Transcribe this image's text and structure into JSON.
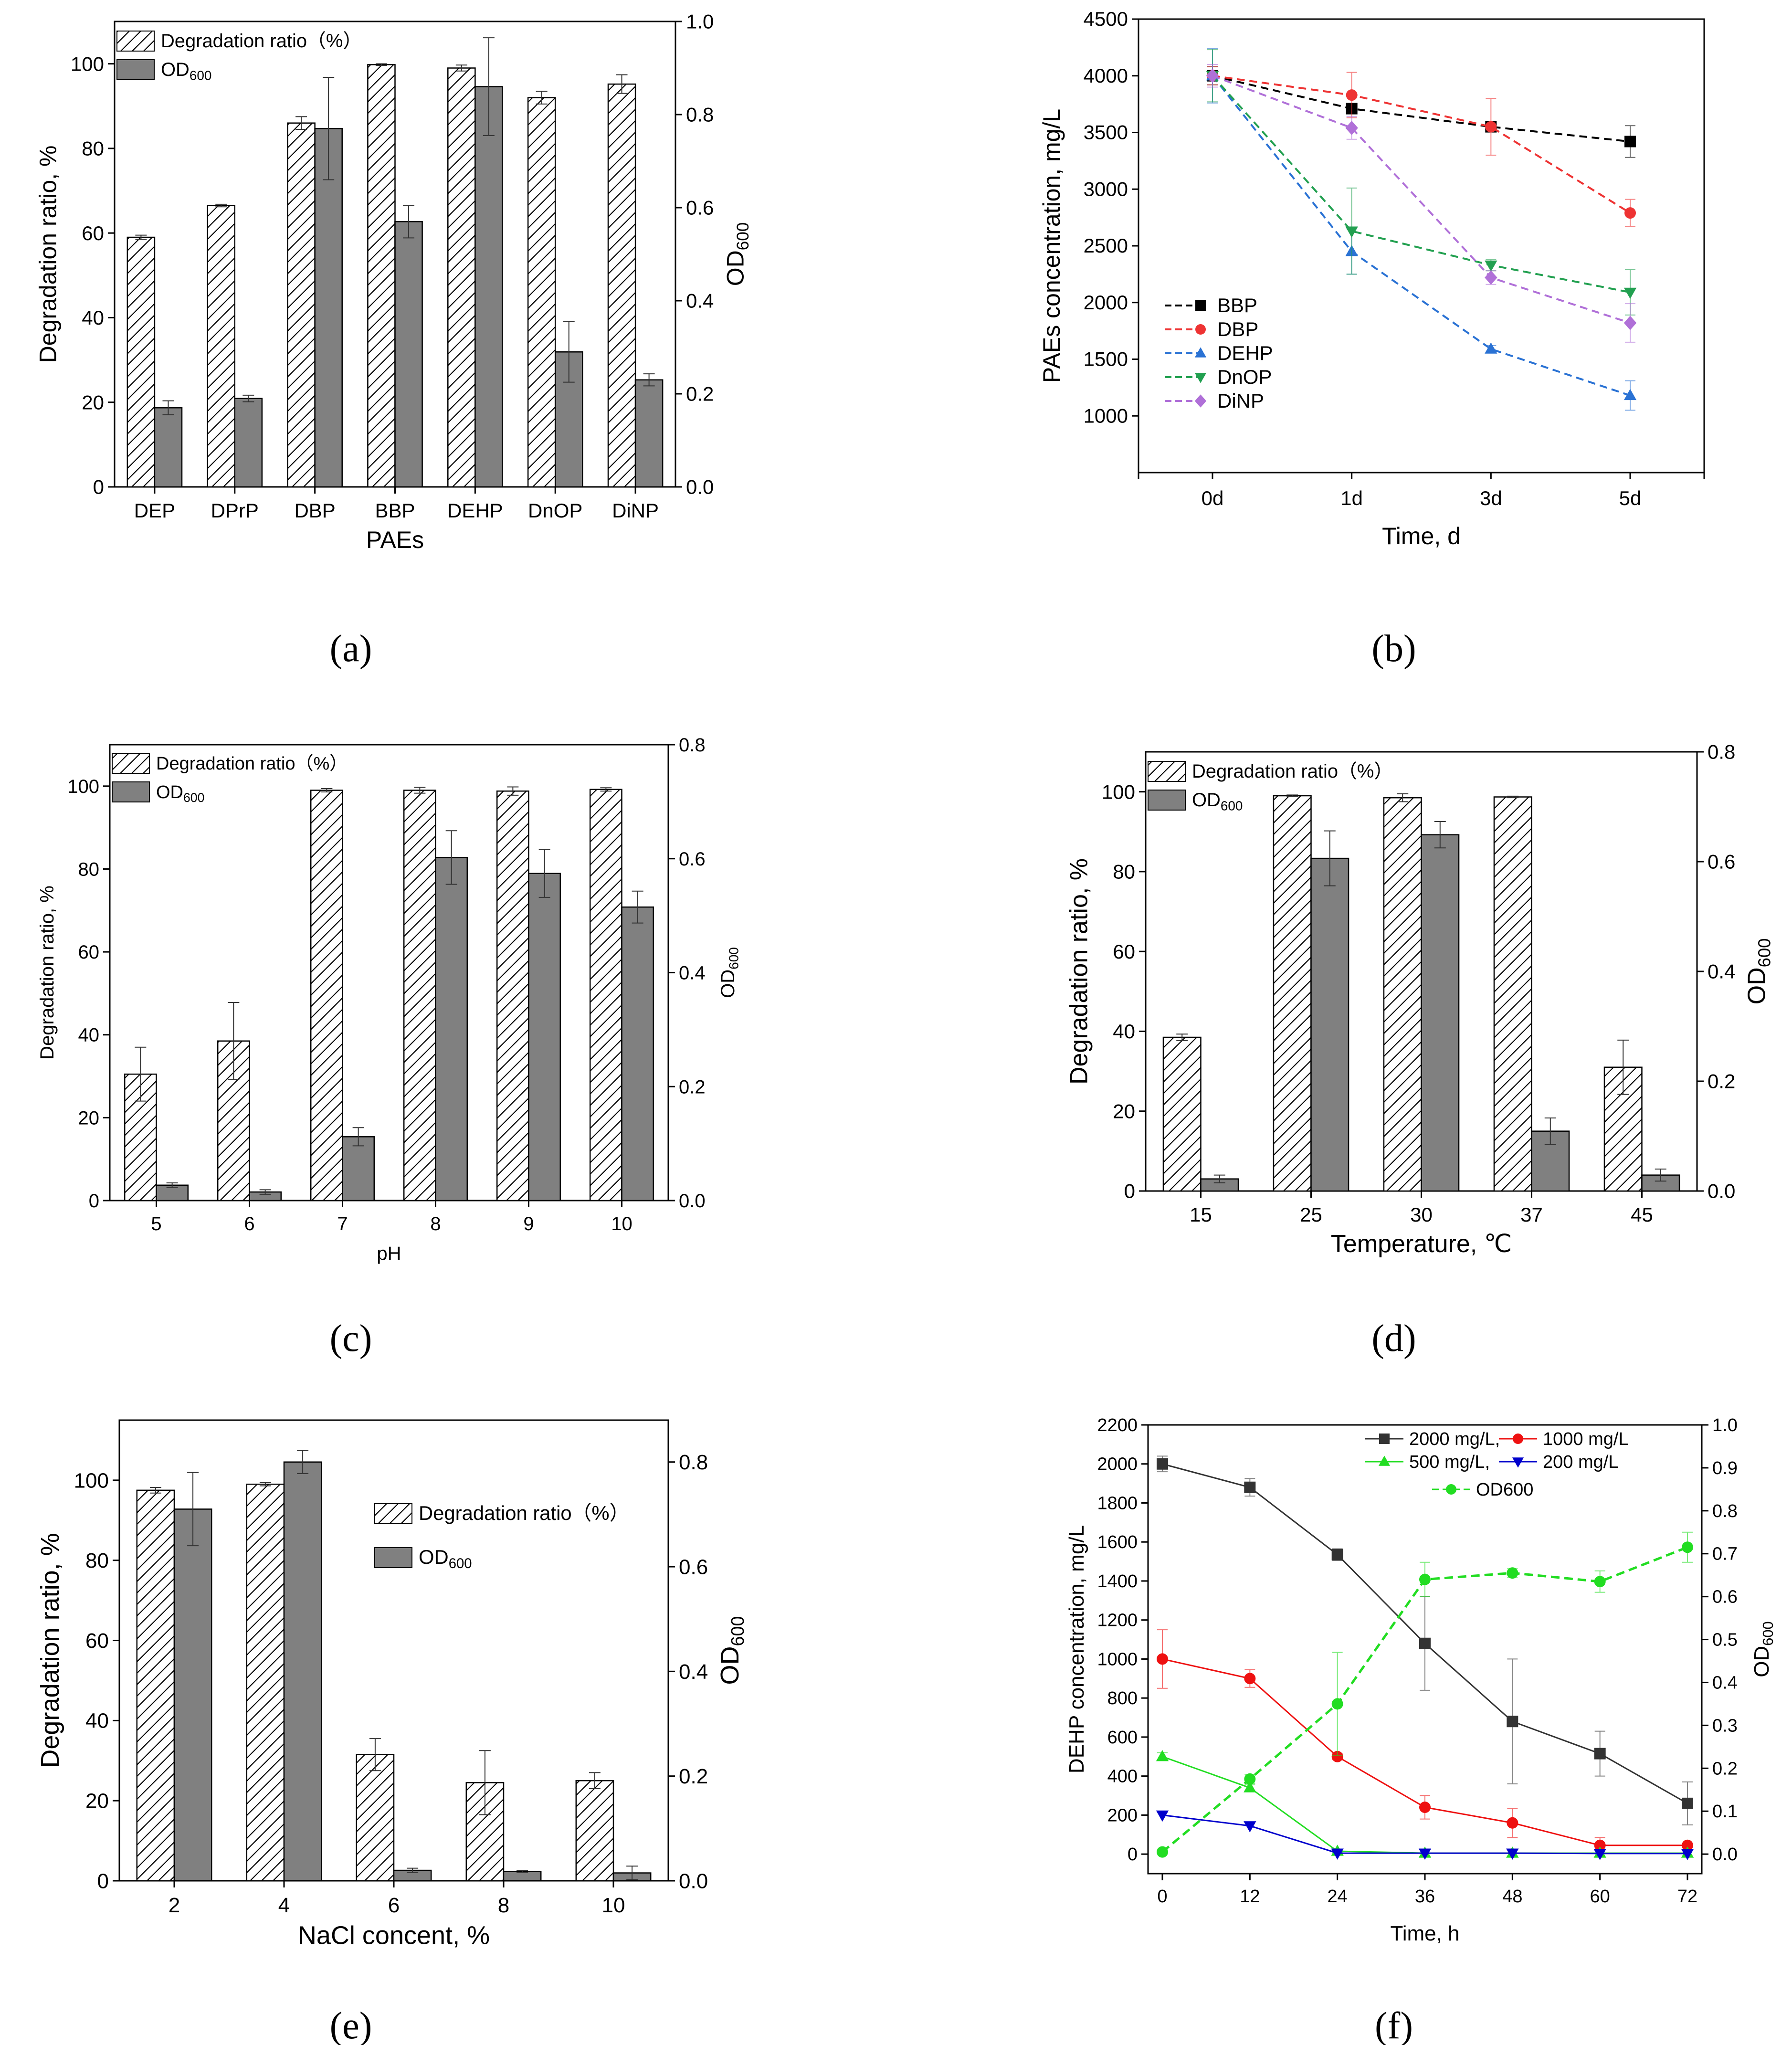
{
  "panel_labels": [
    "(a)",
    "(b)",
    "(c)",
    "(d)",
    "(e)",
    "(f)"
  ],
  "chart_data": [
    {
      "id": "a",
      "type": "bar",
      "categories": [
        "DEP",
        "DPrP",
        "DBP",
        "BBP",
        "DEHP",
        "DnOP",
        "DiNP"
      ],
      "series": [
        {
          "name": "Degradation ratio（%）",
          "axis": "left",
          "pattern": "hatch",
          "values": [
            59,
            66.5,
            86,
            99.8,
            99,
            92,
            95.2
          ],
          "errors": [
            0.5,
            0.3,
            1.5,
            0.2,
            0.7,
            1.5,
            2.2
          ]
        },
        {
          "name": "OD",
          "name_sub": "600",
          "axis": "right",
          "pattern": "solid",
          "values": [
            0.17,
            0.19,
            0.77,
            0.57,
            0.86,
            0.29,
            0.23
          ],
          "errors": [
            0.015,
            0.007,
            0.11,
            0.035,
            0.105,
            0.065,
            0.013
          ]
        }
      ],
      "xlabel": "PAEs",
      "ylabel": "Degradation ratio, %",
      "y2label": "OD",
      "y2label_sub": "600",
      "ylim": [
        0,
        110
      ],
      "y2lim": [
        0,
        1.0
      ],
      "yticks": [
        "0",
        "20",
        "40",
        "60",
        "80",
        "100"
      ],
      "y2ticks": [
        "0.0",
        "0.2",
        "0.4",
        "0.6",
        "0.8",
        "1.0"
      ],
      "legend": "top-left"
    },
    {
      "id": "b",
      "type": "line",
      "categories": [
        "0d",
        "1d",
        "3d",
        "5d"
      ],
      "series": [
        {
          "name": "BBP",
          "color": "#000000",
          "marker": "square",
          "values": [
            4000,
            3710,
            3550,
            3420
          ],
          "errors": [
            80,
            30,
            30,
            140
          ]
        },
        {
          "name": "DBP",
          "color": "#ee3333",
          "marker": "circle",
          "values": [
            4000,
            3830,
            3550,
            2790
          ],
          "errors": [
            80,
            200,
            250,
            120
          ]
        },
        {
          "name": "DEHP",
          "color": "#2a72d4",
          "marker": "triangle-up",
          "values": [
            4000,
            2450,
            1590,
            1180
          ],
          "errors": [
            240,
            200,
            30,
            130
          ]
        },
        {
          "name": "DnOP",
          "color": "#22a050",
          "marker": "triangle-down",
          "values": [
            4000,
            2630,
            2330,
            2090
          ],
          "errors": [
            230,
            380,
            50,
            200
          ]
        },
        {
          "name": "DiNP",
          "color": "#b070d8",
          "marker": "diamond",
          "values": [
            4000,
            3540,
            2220,
            1820
          ],
          "errors": [
            100,
            100,
            60,
            170
          ]
        }
      ],
      "xlabel": "Time, d",
      "ylabel": "PAEs concentration, mg/L",
      "ylim": [
        500,
        4500
      ],
      "yticks": [
        "1000",
        "1500",
        "2000",
        "2500",
        "3000",
        "3500",
        "4000",
        "4500"
      ],
      "legend": "left"
    },
    {
      "id": "c",
      "type": "bar",
      "categories": [
        "5",
        "6",
        "7",
        "8",
        "9",
        "10"
      ],
      "series": [
        {
          "name": "Degradation ratio（%）",
          "axis": "left",
          "pattern": "hatch",
          "values": [
            30.5,
            38.5,
            99,
            99,
            98.8,
            99.2
          ],
          "errors": [
            6.5,
            9.3,
            0.4,
            0.7,
            1.0,
            0.4
          ]
        },
        {
          "name": "OD",
          "name_sub": "600",
          "axis": "right",
          "pattern": "solid",
          "values": [
            0.027,
            0.015,
            0.112,
            0.602,
            0.574,
            0.515
          ],
          "errors": [
            0.004,
            0.004,
            0.016,
            0.047,
            0.042,
            0.028
          ]
        }
      ],
      "xlabel": "pH",
      "ylabel": "Degradation ratio, %",
      "y2label": "OD",
      "y2label_sub": "600",
      "ylim": [
        0,
        110
      ],
      "y2lim": [
        0,
        0.8
      ],
      "yticks": [
        "0",
        "20",
        "40",
        "60",
        "80",
        "100"
      ],
      "y2ticks": [
        "0.0",
        "0.2",
        "0.4",
        "0.6",
        "0.8"
      ],
      "legend": "top-left"
    },
    {
      "id": "d",
      "type": "bar",
      "categories": [
        "15",
        "25",
        "30",
        "37",
        "45"
      ],
      "series": [
        {
          "name": "Degradation ratio（%）",
          "axis": "left",
          "pattern": "hatch",
          "values": [
            38.5,
            99,
            98.5,
            98.7,
            31
          ],
          "errors": [
            0.8,
            0.2,
            1.0,
            0.2,
            6.8
          ]
        },
        {
          "name": "OD",
          "name_sub": "600",
          "axis": "right",
          "pattern": "solid",
          "values": [
            0.022,
            0.606,
            0.649,
            0.109,
            0.029
          ],
          "errors": [
            0.007,
            0.05,
            0.024,
            0.024,
            0.011
          ]
        }
      ],
      "xlabel": "Temperature, ℃",
      "ylabel": "Degradation ratio, %",
      "y2label": "OD",
      "y2label_sub": "600",
      "ylim": [
        0,
        110
      ],
      "y2lim": [
        0,
        0.8
      ],
      "yticks": [
        "0",
        "20",
        "40",
        "60",
        "80",
        "100"
      ],
      "y2ticks": [
        "0.0",
        "0.2",
        "0.4",
        "0.6",
        "0.8"
      ],
      "legend": "top-left"
    },
    {
      "id": "e",
      "type": "bar",
      "categories": [
        "2",
        "4",
        "6",
        "8",
        "10"
      ],
      "series": [
        {
          "name": "Degradation ratio（%）",
          "axis": "left",
          "pattern": "hatch",
          "values": [
            97.5,
            99,
            31.5,
            24.5,
            25
          ],
          "errors": [
            0.7,
            0.4,
            4.0,
            8.0,
            2.0
          ]
        },
        {
          "name": "OD",
          "name_sub": "600",
          "axis": "right",
          "pattern": "solid",
          "values": [
            0.71,
            0.8,
            0.02,
            0.018,
            0.015
          ],
          "errors": [
            0.07,
            0.022,
            0.004,
            0.002,
            0.013
          ]
        }
      ],
      "xlabel": "NaCl concent, %",
      "ylabel": "Degradation ratio, %",
      "y2label": "OD",
      "y2label_sub": "600",
      "ylim": [
        0,
        115
      ],
      "y2lim": [
        0,
        0.88
      ],
      "yticks": [
        "0",
        "20",
        "40",
        "60",
        "80",
        "100"
      ],
      "y2ticks": [
        "0.0",
        "0.2",
        "0.4",
        "0.6",
        "0.8"
      ],
      "legend": "middle-right"
    },
    {
      "id": "f",
      "type": "line",
      "x": [
        0,
        12,
        24,
        36,
        48,
        60,
        72
      ],
      "xticks": [
        "0",
        "12",
        "24",
        "36",
        "48",
        "60",
        "72"
      ],
      "series": [
        {
          "name": "2000 mg/L,",
          "color": "#333333",
          "marker": "square",
          "axis": "left",
          "values": [
            2000,
            1880,
            1535,
            1080,
            680,
            515,
            260
          ],
          "errors": [
            40,
            45,
            30,
            240,
            320,
            115,
            110
          ]
        },
        {
          "name": "1000 mg/L",
          "color": "#ee1111",
          "marker": "circle",
          "axis": "left",
          "values": [
            1000,
            900,
            500,
            240,
            160,
            45,
            45
          ],
          "errors": [
            150,
            45,
            15,
            60,
            75,
            40,
            0
          ]
        },
        {
          "name": "500 mg/L,",
          "color": "#22dd22",
          "marker": "triangle-up",
          "axis": "left",
          "values": [
            500,
            340,
            15,
            5,
            5,
            5,
            5
          ],
          "errors": [
            20,
            15,
            5,
            0,
            0,
            0,
            0
          ]
        },
        {
          "name": "200 mg/L",
          "color": "#0000cc",
          "marker": "triangle-down",
          "axis": "left",
          "values": [
            200,
            145,
            5,
            5,
            5,
            3,
            3
          ],
          "errors": [
            0,
            0,
            0,
            0,
            0,
            0,
            0
          ]
        },
        {
          "name": "OD600",
          "color": "#22dd22",
          "marker": "circle",
          "axis": "right",
          "dashed": true,
          "values": [
            0.005,
            0.175,
            0.35,
            0.64,
            0.655,
            0.635,
            0.715
          ],
          "errors": [
            0,
            0.01,
            0.12,
            0.04,
            0.01,
            0.025,
            0.035
          ]
        }
      ],
      "xlabel": "Time, h",
      "ylabel": "DEHP concentration, mg/L",
      "y2label": "OD",
      "y2label_sub": "600",
      "ylim": [
        -100,
        2200
      ],
      "y2lim": [
        0,
        1.0
      ],
      "yticks": [
        "0",
        "200",
        "400",
        "600",
        "800",
        "1000",
        "1200",
        "1400",
        "1600",
        "1800",
        "2000",
        "2200"
      ],
      "y2ticks": [
        "0.0",
        "0.1",
        "0.2",
        "0.3",
        "0.4",
        "0.5",
        "0.6",
        "0.7",
        "0.8",
        "0.9",
        "1.0"
      ],
      "legend": "top-right"
    }
  ]
}
